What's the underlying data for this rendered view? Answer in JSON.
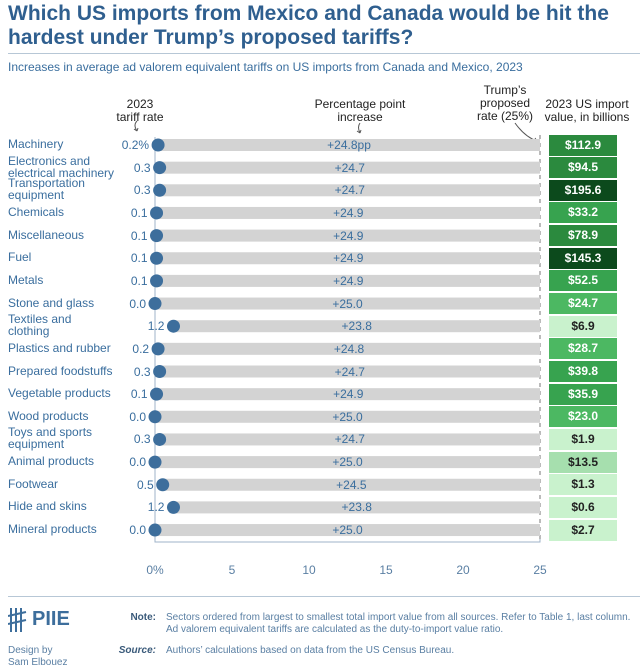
{
  "title": "Which US imports from Mexico and Canada would be hit the hardest under Trump’s proposed tariffs?",
  "subtitle": "Increases in average ad valorem equivalent tariffs on US imports from Canada and Mexico, 2023",
  "headers": {
    "rate": "2023\ntariff rate",
    "increase": "Percentage point\nincrease",
    "proposed": "Trump’s\nproposed\nrate (25%)",
    "imports": "2023 US import\nvalue, in billions"
  },
  "chart_data": {
    "type": "dumbbell-bar",
    "xlim": [
      0,
      25
    ],
    "ticks": [
      "0%",
      "5",
      "10",
      "15",
      "20",
      "25"
    ],
    "tick_values": [
      0,
      5,
      10,
      15,
      20,
      25
    ],
    "proposed_rate": 25,
    "categories": [
      "Machinery",
      "Electronics and\nelectrical machinery",
      "Transportation\nequipment",
      "Chemicals",
      "Miscellaneous",
      "Fuel",
      "Metals",
      "Stone and glass",
      "Textiles and\nclothing",
      "Plastics and rubber",
      "Prepared foodstuffs",
      "Vegetable products",
      "Wood products",
      "Toys and sports\nequipment",
      "Animal products",
      "Footwear",
      "Hide and skins",
      "Mineral products"
    ],
    "rate_2023": [
      0.2,
      0.3,
      0.3,
      0.1,
      0.1,
      0.1,
      0.1,
      0.0,
      1.2,
      0.2,
      0.3,
      0.1,
      0.0,
      0.3,
      0.0,
      0.5,
      1.2,
      0.0
    ],
    "rate_labels": [
      "0.2%",
      "0.3",
      "0.3",
      "0.1",
      "0.1",
      "0.1",
      "0.1",
      "0.0",
      "1.2",
      "0.2",
      "0.3",
      "0.1",
      "0.0",
      "0.3",
      "0.0",
      "0.5",
      "1.2",
      "0.0"
    ],
    "increase_labels": [
      "+24.8pp",
      "+24.7",
      "+24.7",
      "+24.9",
      "+24.9",
      "+24.9",
      "+24.9",
      "+25.0",
      "+23.8",
      "+24.8",
      "+24.7",
      "+24.9",
      "+25.0",
      "+24.7",
      "+25.0",
      "+24.5",
      "+23.8",
      "+25.0"
    ],
    "import_values": [
      112.9,
      94.5,
      195.6,
      33.2,
      78.9,
      145.3,
      52.5,
      24.7,
      6.9,
      28.7,
      39.8,
      35.9,
      23.0,
      1.9,
      13.5,
      1.3,
      0.6,
      2.7
    ],
    "import_labels": [
      "$112.9",
      "$94.5",
      "$195.6",
      "$33.2",
      "$78.9",
      "$145.3",
      "$52.5",
      "$24.7",
      "$6.9",
      "$28.7",
      "$39.8",
      "$35.9",
      "$23.0",
      "$1.9",
      "$13.5",
      "$1.3",
      "$0.6",
      "$2.7"
    ]
  },
  "colors": {
    "dot": "#3d6e9c",
    "bar": "#d3d3d3",
    "title": "#2f5f8f"
  },
  "footer": {
    "logo": "PIIE",
    "design": "Design by\nSam Elbouez",
    "note_label": "Note:",
    "note": "Sectors ordered from largest to smallest total import value from all sources. Refer to Table 1, last column. Ad valorem equivalent tariffs are calculated as the duty-to-import value ratio.",
    "source_label": "Source:",
    "source": "Authors’ calculations based on data from the US Census Bureau."
  }
}
